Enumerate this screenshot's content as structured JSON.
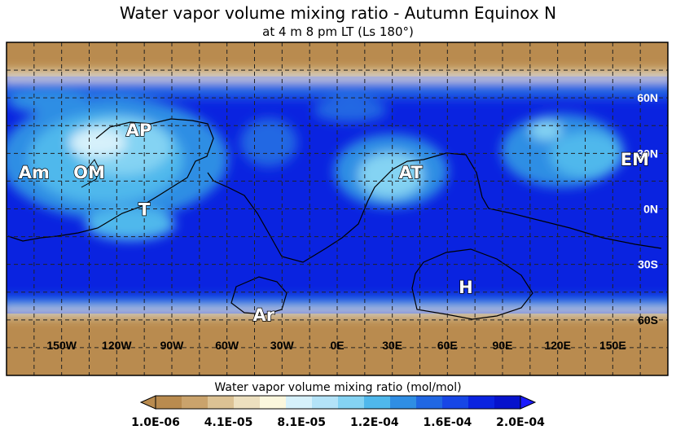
{
  "chart_data": {
    "type": "heatmap",
    "title": "Water vapor volume mixing ratio - Autumn Equinox N",
    "subtitle": "at 4 m 8 pm LT (Ls 180°)",
    "colorbar_label": "Water vapor volume mixing ratio (mol/mol)",
    "colorbar_ticks": [
      "1.0E-06",
      "4.1E-05",
      "8.1E-05",
      "1.2E-04",
      "1.6E-04",
      "2.0E-04"
    ],
    "color_range": [
      1e-06,
      0.0002
    ],
    "colorbar_colors": [
      "#b98b4f",
      "#caa36c",
      "#dcc294",
      "#ede0bf",
      "#fbf7dd",
      "#d6f1fb",
      "#b3e3f8",
      "#84d3f3",
      "#4fb8ec",
      "#2f8ee4",
      "#2067e3",
      "#1746e6",
      "#0a23e0",
      "#0612cc"
    ],
    "x_ticks": [
      "150W",
      "120W",
      "90W",
      "60W",
      "30W",
      "0E",
      "30E",
      "60E",
      "90E",
      "120E",
      "150E"
    ],
    "y_ticks": [
      "60N",
      "30N",
      "0N",
      "30S",
      "60S"
    ],
    "xlim": [
      -180,
      180
    ],
    "ylim": [
      -90,
      90
    ],
    "grid": true,
    "regions": [
      {
        "label": "AP",
        "lon": -108,
        "lat": 43
      },
      {
        "label": "Am",
        "lon": -165,
        "lat": 20
      },
      {
        "label": "OM",
        "lon": -135,
        "lat": 20
      },
      {
        "label": "T",
        "lon": -105,
        "lat": 0
      },
      {
        "label": "AT",
        "lon": 40,
        "lat": 20
      },
      {
        "label": "EM",
        "lon": 162,
        "lat": 27
      },
      {
        "label": "H",
        "lon": 70,
        "lat": -42
      },
      {
        "label": "Ar",
        "lon": -40,
        "lat": -57
      }
    ]
  }
}
